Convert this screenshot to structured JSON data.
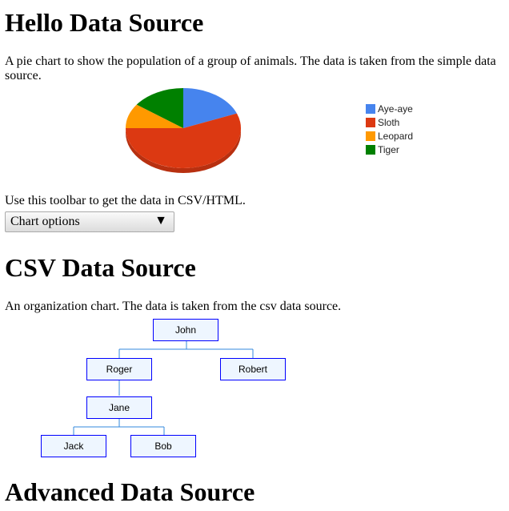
{
  "sections": {
    "hello": {
      "title": "Hello Data Source",
      "desc": "A pie chart to show the population of a group of animals. The data is taken from the simple data source."
    },
    "toolbar_text": "Use this toolbar to get the data in CSV/HTML.",
    "chart_options": "Chart options",
    "csv": {
      "title": "CSV Data Source",
      "desc": "An organization chart. The data is taken from the csv data source."
    },
    "advanced": {
      "title": "Advanced Data Source"
    }
  },
  "chart_data": {
    "type": "pie",
    "style": "3d",
    "legend": "right",
    "categories": [
      "Aye-aye",
      "Sloth",
      "Leopard",
      "Tiger"
    ],
    "values": [
      19,
      56,
      10,
      15
    ],
    "colors": [
      "#4684ee",
      "#dc3912",
      "#ff9900",
      "#008000"
    ]
  },
  "org_chart": {
    "nodes": [
      {
        "name": "John",
        "parent": null
      },
      {
        "name": "Roger",
        "parent": "John"
      },
      {
        "name": "Robert",
        "parent": "John"
      },
      {
        "name": "Jane",
        "parent": "Roger"
      },
      {
        "name": "Jack",
        "parent": "Jane"
      },
      {
        "name": "Bob",
        "parent": "Jane"
      }
    ]
  }
}
